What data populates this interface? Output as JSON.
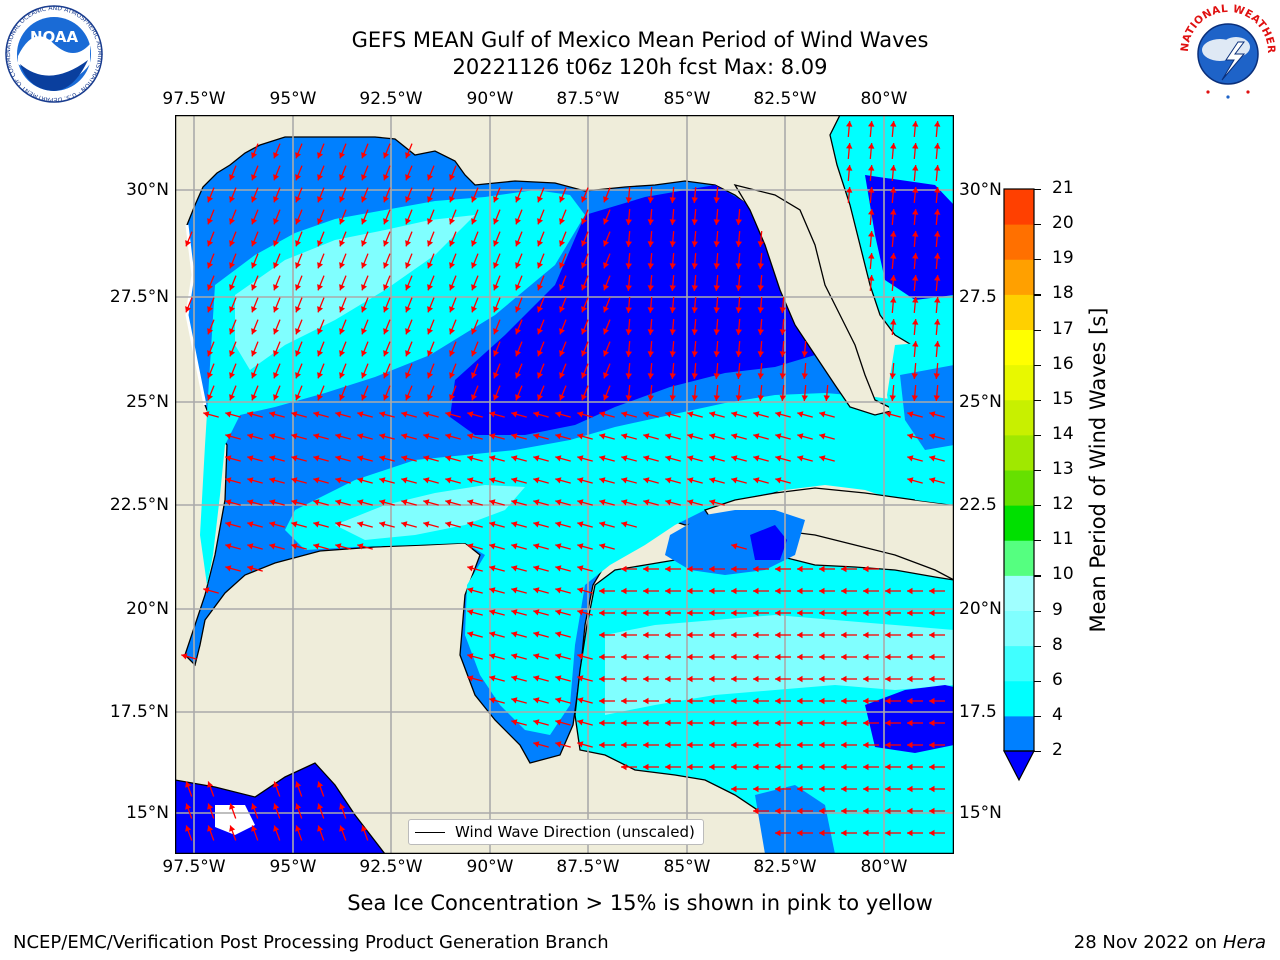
{
  "header": {
    "title_line1": "GEFS MEAN Gulf of Mexico Mean Period of Wind Waves",
    "title_line2": "20221126 t06z 120h fcst   Max: 8.09"
  },
  "logos": {
    "noaa_text": "NOAA",
    "noaa_ring": "NATIONAL OCEANIC AND ATMOSPHERIC ADMINISTRATION · U.S. DEPARTMENT OF COMMERCE ·",
    "nws_ring": "NATIONAL WEATHER SERVICE"
  },
  "map": {
    "lon_ticks": [
      "97.5°W",
      "95°W",
      "92.5°W",
      "90°W",
      "87.5°W",
      "85°W",
      "82.5°W",
      "80°W"
    ],
    "lat_ticks_left": [
      "30°N",
      "27.5°N",
      "25°N",
      "22.5°N",
      "20°N",
      "17.5°N",
      "15°N"
    ],
    "lat_ticks_right": [
      "30°N",
      "27.5",
      "25°N",
      "22.5",
      "20°N",
      "17.5",
      "15°N"
    ],
    "legend_label": "Wind Wave Direction (unscaled)",
    "colors": {
      "land": "#efedda",
      "ocean_dark": "#0000ff",
      "ocean_mid": "#0080ff",
      "ocean_cyan": "#00ffff",
      "ocean_light": "#80ffff",
      "arrow": "#ff0000",
      "grid": "#aaaaaa"
    }
  },
  "colorbar": {
    "label": "Mean Period of Wind Waves [s]",
    "ticks": [
      "2",
      "4",
      "6",
      "8",
      "9",
      "10",
      "11",
      "12",
      "13",
      "14",
      "15",
      "16",
      "17",
      "18",
      "19",
      "20",
      "21"
    ],
    "colors": [
      "#0080ff",
      "#00ffff",
      "#40ffff",
      "#80ffff",
      "#a0ffff",
      "#55ff80",
      "#00e000",
      "#66e000",
      "#a0e800",
      "#c8f000",
      "#e8f800",
      "#ffff00",
      "#ffd000",
      "#ffa000",
      "#ff7000",
      "#ff4000",
      "#ff0000"
    ],
    "under_color": "#0000ff"
  },
  "footer": {
    "ice_note": "Sea Ice Concentration > 15% is shown in pink to yellow",
    "org": "NCEP/EMC/Verification Post Processing Product Generation Branch",
    "date": "28 Nov 2022 on",
    "host": "Hera"
  }
}
